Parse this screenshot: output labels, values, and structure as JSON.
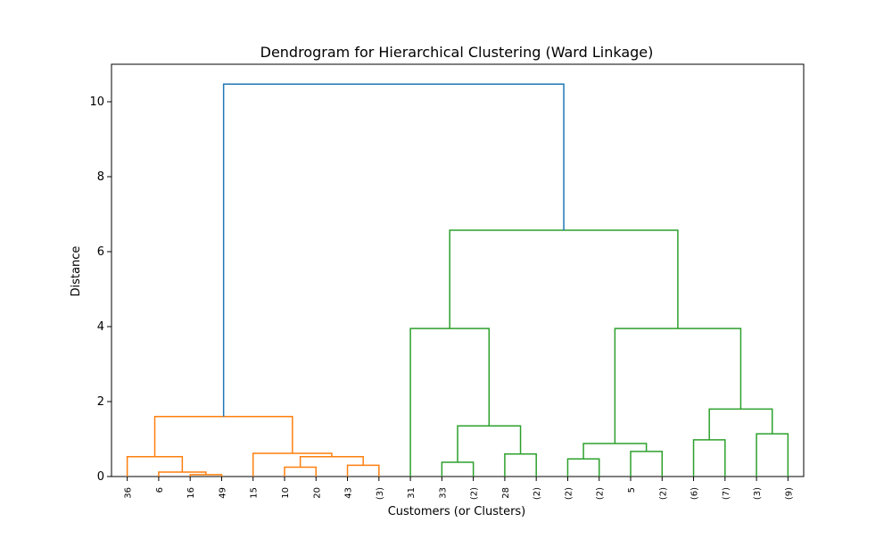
{
  "chart_data": {
    "type": "dendrogram",
    "title": "Dendrogram for Hierarchical Clustering (Ward Linkage)",
    "xlabel": "Customers (or Clusters)",
    "ylabel": "Distance",
    "ylim": [
      0,
      11
    ],
    "yticks": [
      0,
      2,
      4,
      6,
      8,
      10
    ],
    "leaves": [
      "36",
      "6",
      "16",
      "49",
      "15",
      "10",
      "20",
      "43",
      "(3)",
      "31",
      "33",
      "(2)",
      "28",
      "(2)",
      "(2)",
      "(2)",
      "5",
      "(2)",
      "(6)",
      "(7)",
      "(3)",
      "(9)"
    ],
    "colors": {
      "orange": "#ff7f0e",
      "green": "#2ca02c",
      "blue": "#1f77b4"
    },
    "links": [
      {
        "left": "16",
        "right": "49",
        "height": 0.05,
        "color": "orange"
      },
      {
        "left": "6",
        "right": "16+49",
        "height": 0.12,
        "color": "orange"
      },
      {
        "left": "36",
        "right": "6+16+49",
        "height": 0.53,
        "color": "orange"
      },
      {
        "left": "10",
        "right": "20",
        "height": 0.25,
        "color": "orange"
      },
      {
        "left": "43",
        "right": "(3)",
        "height": 0.3,
        "color": "orange"
      },
      {
        "left": "10+20",
        "right": "43+(3)",
        "height": 0.53,
        "color": "orange"
      },
      {
        "left": "15",
        "right": "10+20+43+(3)",
        "height": 0.62,
        "color": "orange"
      },
      {
        "left": "36+6+16+49",
        "right": "15+10+20+43+(3)",
        "height": 1.6,
        "color": "orange"
      },
      {
        "left": "33",
        "right": "(2)",
        "height": 0.38,
        "color": "green"
      },
      {
        "left": "28",
        "right": "(2)",
        "height": 0.6,
        "color": "green"
      },
      {
        "left": "33+(2)",
        "right": "28+(2)",
        "height": 1.35,
        "color": "green"
      },
      {
        "left": "31",
        "right": "33+(2)+28+(2)",
        "height": 3.95,
        "color": "green"
      },
      {
        "left": "(2)",
        "right": "(2)",
        "height": 0.47,
        "color": "green"
      },
      {
        "left": "5",
        "right": "(2)",
        "height": 0.67,
        "color": "green"
      },
      {
        "left": "(2)+(2)",
        "right": "5+(2)",
        "height": 0.88,
        "color": "green"
      },
      {
        "left": "(6)",
        "right": "(7)",
        "height": 0.98,
        "color": "green"
      },
      {
        "left": "(3)",
        "right": "(9)",
        "height": 1.14,
        "color": "green"
      },
      {
        "left": "(6)+(7)",
        "right": "(3)+(9)",
        "height": 1.8,
        "color": "green"
      },
      {
        "left": "(2)+(2)+5+(2)",
        "right": "(6)+(7)+(3)+(9)",
        "height": 3.95,
        "color": "green"
      },
      {
        "left": "31+33+(2)+28+(2)",
        "right": "(2)+(2)+5+(2)+(6)+(7)+(3)+(9)",
        "height": 6.57,
        "color": "green"
      },
      {
        "left": "orange-cluster",
        "right": "green-cluster",
        "height": 10.47,
        "color": "blue"
      }
    ]
  }
}
